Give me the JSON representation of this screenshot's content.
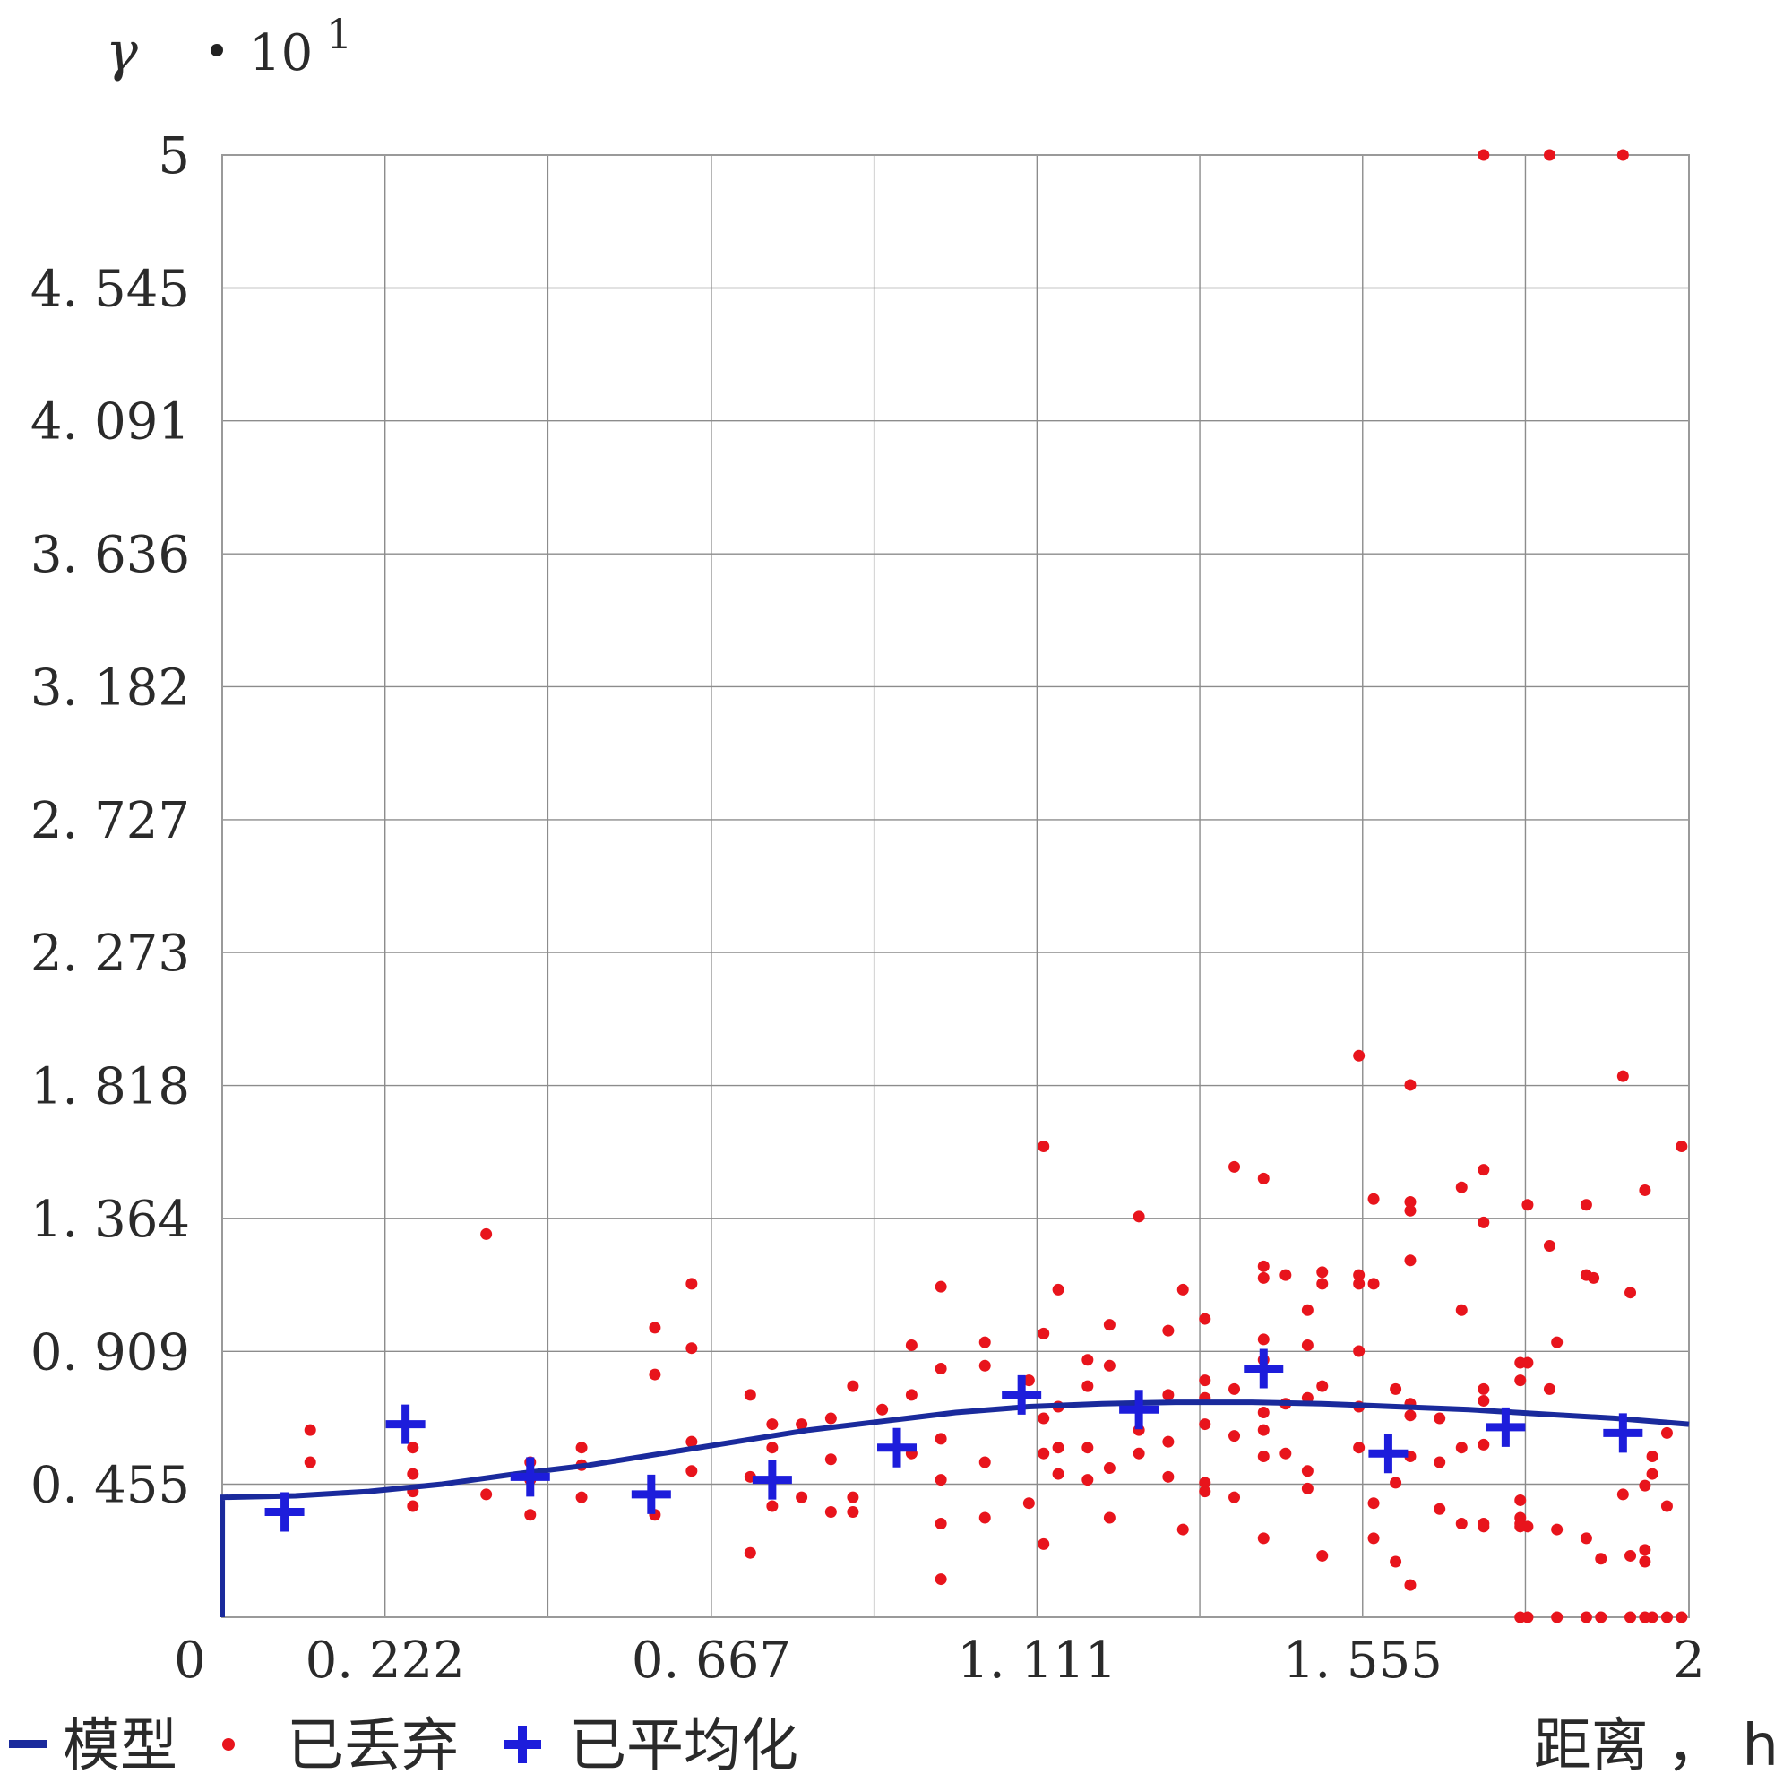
{
  "chart_data": {
    "type": "scatter",
    "y_symbol": "γ",
    "y_scale_label": "10",
    "y_scale_exponent": "1",
    "xlabel": "距离 ， h",
    "xlim": [
      0,
      2
    ],
    "ylim": [
      0,
      5
    ],
    "x_ticks": [
      0,
      0.222,
      0.444,
      0.667,
      0.889,
      1.111,
      1.333,
      1.555,
      1.777,
      2
    ],
    "x_tick_labels": [
      "0",
      "0. 222",
      "",
      "0. 667",
      "",
      "1. 111",
      "",
      "1. 555",
      "",
      "2"
    ],
    "y_ticks": [
      0,
      0.455,
      0.909,
      1.364,
      1.818,
      2.273,
      2.727,
      3.182,
      3.636,
      4.091,
      4.545,
      5
    ],
    "y_tick_labels": [
      "",
      "0. 455",
      "0. 909",
      "1. 364",
      "1. 818",
      "2. 273",
      "2. 727",
      "3. 182",
      "3. 636",
      "4. 091",
      "4. 545",
      "5"
    ],
    "grid": true,
    "legend_position": "bottom-left",
    "legend": [
      "模型",
      "已丢弃",
      "已平均化"
    ],
    "series": [
      {
        "name": "模型",
        "kind": "line",
        "color": "#1a2a9c",
        "x": [
          0,
          0.0001,
          0.1,
          0.2,
          0.3,
          0.4,
          0.5,
          0.6,
          0.7,
          0.8,
          0.9,
          1.0,
          1.1,
          1.2,
          1.3,
          1.4,
          1.5,
          1.6,
          1.7,
          1.8,
          1.9,
          2.0
        ],
        "y": [
          0,
          0.41,
          0.415,
          0.43,
          0.455,
          0.49,
          0.52,
          0.56,
          0.6,
          0.64,
          0.67,
          0.7,
          0.72,
          0.73,
          0.735,
          0.735,
          0.73,
          0.72,
          0.71,
          0.695,
          0.68,
          0.66
        ]
      },
      {
        "name": "已丢弃",
        "kind": "points",
        "color": "#e8141c",
        "points": [
          [
            0.12,
            0.64
          ],
          [
            0.12,
            0.53
          ],
          [
            0.26,
            0.58
          ],
          [
            0.26,
            0.49
          ],
          [
            0.26,
            0.43
          ],
          [
            0.26,
            0.38
          ],
          [
            0.36,
            1.31
          ],
          [
            0.36,
            0.42
          ],
          [
            0.42,
            0.53
          ],
          [
            0.42,
            0.47
          ],
          [
            0.42,
            0.35
          ],
          [
            0.49,
            0.58
          ],
          [
            0.49,
            0.52
          ],
          [
            0.49,
            0.41
          ],
          [
            0.59,
            0.99
          ],
          [
            0.59,
            0.83
          ],
          [
            0.59,
            0.35
          ],
          [
            0.64,
            1.14
          ],
          [
            0.64,
            0.92
          ],
          [
            0.64,
            0.6
          ],
          [
            0.64,
            0.5
          ],
          [
            0.72,
            0.76
          ],
          [
            0.72,
            0.48
          ],
          [
            0.72,
            0.22
          ],
          [
            0.75,
            0.66
          ],
          [
            0.75,
            0.58
          ],
          [
            0.75,
            0.38
          ],
          [
            0.79,
            0.66
          ],
          [
            0.79,
            0.41
          ],
          [
            0.83,
            0.68
          ],
          [
            0.83,
            0.54
          ],
          [
            0.83,
            0.36
          ],
          [
            0.86,
            0.79
          ],
          [
            0.86,
            0.41
          ],
          [
            0.86,
            0.36
          ],
          [
            0.9,
            0.71
          ],
          [
            0.94,
            0.93
          ],
          [
            0.94,
            0.76
          ],
          [
            0.94,
            0.56
          ],
          [
            0.98,
            1.13
          ],
          [
            0.98,
            0.85
          ],
          [
            0.98,
            0.61
          ],
          [
            0.98,
            0.47
          ],
          [
            0.98,
            0.32
          ],
          [
            0.98,
            0.13
          ],
          [
            1.04,
            0.94
          ],
          [
            1.04,
            0.86
          ],
          [
            1.04,
            0.53
          ],
          [
            1.04,
            0.34
          ],
          [
            1.1,
            0.81
          ],
          [
            1.1,
            0.39
          ],
          [
            1.12,
            1.61
          ],
          [
            1.12,
            0.97
          ],
          [
            1.12,
            0.68
          ],
          [
            1.12,
            0.56
          ],
          [
            1.12,
            0.25
          ],
          [
            1.14,
            1.12
          ],
          [
            1.14,
            0.72
          ],
          [
            1.14,
            0.58
          ],
          [
            1.14,
            0.49
          ],
          [
            1.18,
            0.88
          ],
          [
            1.18,
            0.79
          ],
          [
            1.18,
            0.58
          ],
          [
            1.18,
            0.47
          ],
          [
            1.21,
            1.0
          ],
          [
            1.21,
            0.86
          ],
          [
            1.21,
            0.51
          ],
          [
            1.21,
            0.34
          ],
          [
            1.25,
            1.37
          ],
          [
            1.25,
            0.64
          ],
          [
            1.25,
            0.56
          ],
          [
            1.29,
            0.98
          ],
          [
            1.29,
            0.76
          ],
          [
            1.29,
            0.6
          ],
          [
            1.29,
            0.48
          ],
          [
            1.31,
            1.12
          ],
          [
            1.31,
            0.3
          ],
          [
            1.34,
            1.02
          ],
          [
            1.34,
            0.81
          ],
          [
            1.34,
            0.75
          ],
          [
            1.34,
            0.66
          ],
          [
            1.34,
            0.46
          ],
          [
            1.34,
            0.43
          ],
          [
            1.38,
            1.54
          ],
          [
            1.38,
            0.78
          ],
          [
            1.38,
            0.62
          ],
          [
            1.38,
            0.41
          ],
          [
            1.42,
            1.5
          ],
          [
            1.42,
            1.2
          ],
          [
            1.42,
            1.16
          ],
          [
            1.42,
            0.95
          ],
          [
            1.42,
            0.88
          ],
          [
            1.42,
            0.7
          ],
          [
            1.42,
            0.64
          ],
          [
            1.42,
            0.55
          ],
          [
            1.42,
            0.27
          ],
          [
            1.45,
            1.17
          ],
          [
            1.45,
            0.73
          ],
          [
            1.45,
            0.56
          ],
          [
            1.48,
            1.05
          ],
          [
            1.48,
            0.93
          ],
          [
            1.48,
            0.75
          ],
          [
            1.48,
            0.5
          ],
          [
            1.48,
            0.44
          ],
          [
            1.5,
            1.18
          ],
          [
            1.5,
            1.14
          ],
          [
            1.5,
            0.79
          ],
          [
            1.5,
            0.21
          ],
          [
            1.55,
            1.92
          ],
          [
            1.55,
            1.17
          ],
          [
            1.55,
            1.14
          ],
          [
            1.55,
            0.91
          ],
          [
            1.55,
            0.72
          ],
          [
            1.55,
            0.58
          ],
          [
            1.57,
            1.43
          ],
          [
            1.57,
            1.14
          ],
          [
            1.57,
            0.39
          ],
          [
            1.57,
            0.27
          ],
          [
            1.6,
            0.78
          ],
          [
            1.6,
            0.46
          ],
          [
            1.6,
            0.19
          ],
          [
            1.62,
            1.82
          ],
          [
            1.62,
            1.42
          ],
          [
            1.62,
            1.39
          ],
          [
            1.62,
            1.22
          ],
          [
            1.62,
            0.73
          ],
          [
            1.62,
            0.69
          ],
          [
            1.62,
            0.55
          ],
          [
            1.62,
            0.11
          ],
          [
            1.66,
            0.68
          ],
          [
            1.66,
            0.53
          ],
          [
            1.66,
            0.37
          ],
          [
            1.69,
            1.47
          ],
          [
            1.69,
            1.05
          ],
          [
            1.69,
            0.58
          ],
          [
            1.69,
            0.32
          ],
          [
            1.72,
            1.53
          ],
          [
            1.72,
            1.35
          ],
          [
            1.72,
            0.78
          ],
          [
            1.72,
            0.74
          ],
          [
            1.72,
            0.59
          ],
          [
            1.72,
            0.32
          ],
          [
            1.72,
            0.31
          ],
          [
            1.72,
            5.0
          ],
          [
            1.77,
            0.87
          ],
          [
            1.77,
            0.81
          ],
          [
            1.77,
            0.4
          ],
          [
            1.77,
            0.34
          ],
          [
            1.77,
            0.32
          ],
          [
            1.77,
            0.31
          ],
          [
            1.77,
            0.0
          ],
          [
            1.78,
            1.41
          ],
          [
            1.78,
            0.87
          ],
          [
            1.78,
            0.31
          ],
          [
            1.78,
            0.0
          ],
          [
            1.81,
            1.27
          ],
          [
            1.81,
            0.78
          ],
          [
            1.81,
            5.0
          ],
          [
            1.82,
            0.94
          ],
          [
            1.82,
            0.3
          ],
          [
            1.82,
            0.0
          ],
          [
            1.86,
            1.41
          ],
          [
            1.86,
            1.17
          ],
          [
            1.86,
            0.27
          ],
          [
            1.86,
            0.0
          ],
          [
            1.87,
            1.16
          ],
          [
            1.88,
            0.2
          ],
          [
            1.88,
            0.0
          ],
          [
            1.91,
            1.85
          ],
          [
            1.91,
            0.42
          ],
          [
            1.91,
            5.0
          ],
          [
            1.92,
            1.11
          ],
          [
            1.92,
            0.21
          ],
          [
            1.92,
            0.0
          ],
          [
            1.94,
            1.46
          ],
          [
            1.94,
            0.45
          ],
          [
            1.94,
            0.23
          ],
          [
            1.94,
            0.19
          ],
          [
            1.94,
            0.0
          ],
          [
            1.95,
            0.55
          ],
          [
            1.95,
            0.49
          ],
          [
            1.95,
            0.0
          ],
          [
            1.97,
            0.63
          ],
          [
            1.97,
            0.38
          ],
          [
            1.97,
            0.0
          ],
          [
            1.99,
            1.61
          ],
          [
            1.99,
            0.0
          ]
        ]
      },
      {
        "name": "已平均化",
        "kind": "crosses",
        "color": "#1d1ddb",
        "points": [
          [
            0.085,
            0.36
          ],
          [
            0.25,
            0.66
          ],
          [
            0.42,
            0.48
          ],
          [
            0.585,
            0.42
          ],
          [
            0.75,
            0.47
          ],
          [
            0.92,
            0.58
          ],
          [
            1.09,
            0.76
          ],
          [
            1.25,
            0.71
          ],
          [
            1.42,
            0.85
          ],
          [
            1.59,
            0.56
          ],
          [
            1.75,
            0.65
          ],
          [
            1.91,
            0.63
          ]
        ]
      }
    ]
  }
}
